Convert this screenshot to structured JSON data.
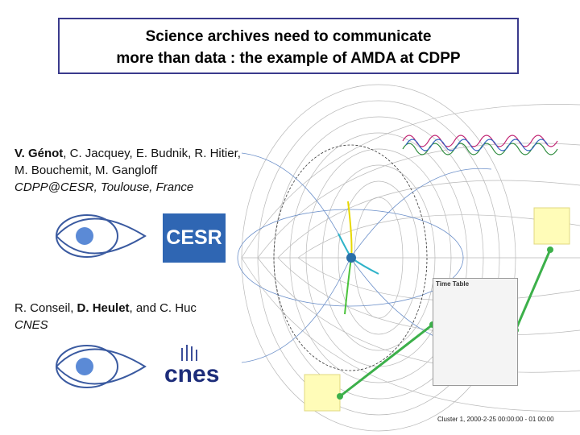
{
  "header": {
    "title_lines": [
      "Science archives need to communicate",
      "more than data : the example of AMDA at CDPP"
    ]
  },
  "groups": [
    {
      "lead": "V. Génot",
      "rest": ", C. Jacquey, E. Budnik, R. Hitier,",
      "line2": "M. Bouchemit, M. Gangloff",
      "affiliation": "CDPP@CESR, Toulouse, France",
      "logo": "CESR"
    },
    {
      "pre": "R. Conseil, ",
      "lead": "D. Heulet",
      "rest": ", and C. Huc",
      "affiliation": "CNES",
      "logo": "cnes"
    }
  ],
  "figure": {
    "time_table_title": "Time Table",
    "caption": "Cluster 1, 2000-2-25 00:00:00 - 01 00:00"
  }
}
